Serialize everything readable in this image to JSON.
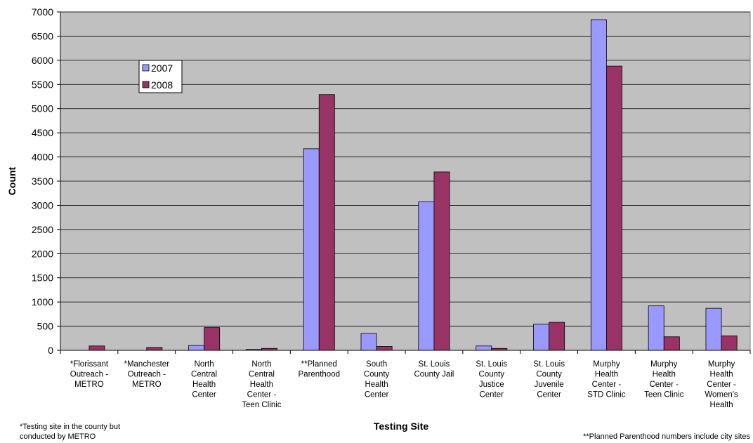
{
  "chart_data": {
    "type": "bar",
    "xlabel": "Testing Site",
    "ylabel": "Count",
    "ylim": [
      0,
      7000
    ],
    "ytick_step": 500,
    "grid": true,
    "legend_position": "top-left",
    "categories": [
      [
        "*Florissant",
        "Outreach -",
        "METRO"
      ],
      [
        "*Manchester",
        "Outreach -",
        "METRO"
      ],
      [
        "North",
        "Central",
        "Health",
        "Center"
      ],
      [
        "North",
        "Central",
        "Health",
        "Center -",
        "Teen Clinic"
      ],
      [
        "**Planned",
        "Parenthood"
      ],
      [
        "South",
        "County",
        "Health",
        "Center"
      ],
      [
        "St. Louis",
        "County Jail"
      ],
      [
        "St. Louis",
        "County",
        "Justice",
        "Center"
      ],
      [
        "St. Louis",
        "County",
        "Juvenile",
        "Center"
      ],
      [
        "Murphy",
        "Health",
        "Center -",
        "STD Clinic"
      ],
      [
        "Murphy",
        "Health",
        "Center -",
        "Teen Clinic"
      ],
      [
        "Murphy",
        "Health",
        "Center -",
        "Women's",
        "Health"
      ]
    ],
    "series": [
      {
        "name": "2007",
        "color": "#9999ff",
        "values": [
          0,
          0,
          100,
          20,
          4170,
          350,
          3070,
          90,
          540,
          6840,
          920,
          870
        ]
      },
      {
        "name": "2008",
        "color": "#993366",
        "values": [
          90,
          60,
          470,
          40,
          5290,
          80,
          3690,
          40,
          580,
          5880,
          280,
          300
        ]
      }
    ],
    "plot_background": "#c0c0c0",
    "notes": {
      "left": [
        "*Testing site in the county but",
        "conducted by  METRO"
      ],
      "right": "**Planned Parenthood numbers include city sites"
    }
  }
}
